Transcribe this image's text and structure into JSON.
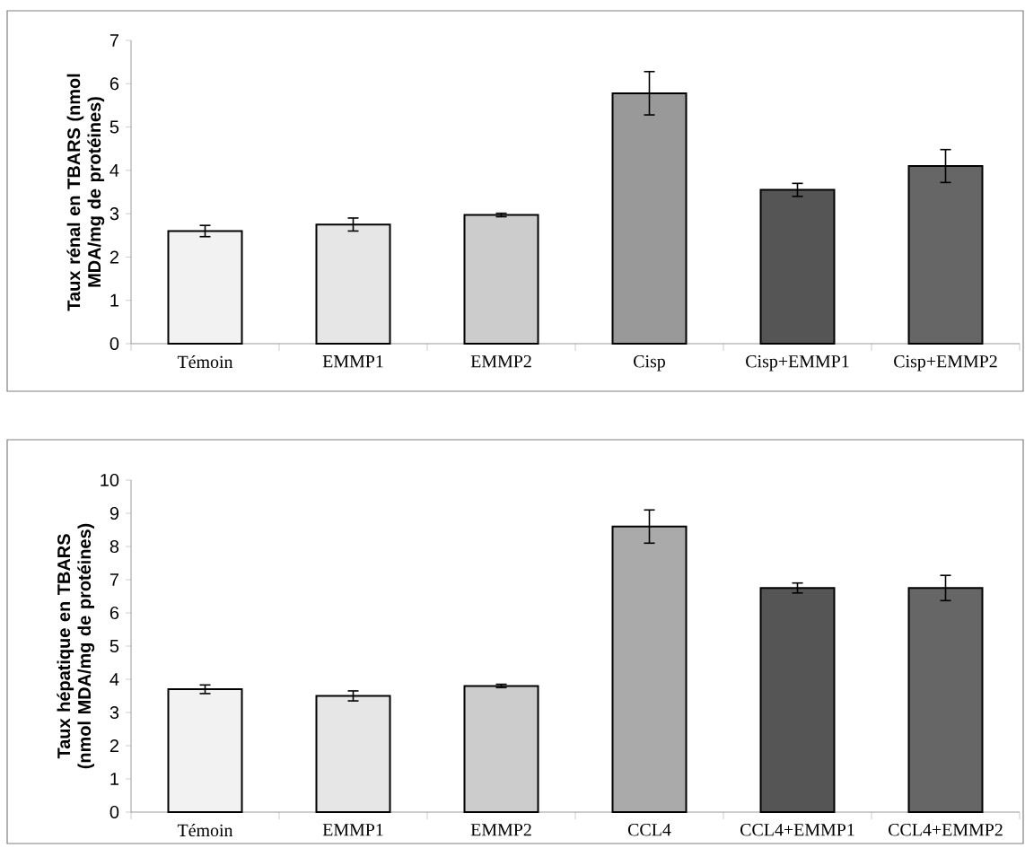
{
  "chart_data": [
    {
      "type": "bar",
      "ylabel": "Taux rénal en TBARS (nmol MDA/mg de protéines)",
      "categories": [
        "Témoin",
        "EMMP1",
        "EMMP2",
        "Cisp",
        "Cisp+EMMP1",
        "Cisp+EMMP2"
      ],
      "values": [
        2.6,
        2.75,
        2.97,
        5.78,
        3.55,
        4.1
      ],
      "errors": [
        0.13,
        0.15,
        0.04,
        0.5,
        0.15,
        0.38
      ],
      "colors": [
        "#f2f2f2",
        "#e6e6e6",
        "#cccccc",
        "#999999",
        "#555555",
        "#666666"
      ],
      "ylim": [
        0,
        7
      ],
      "yticks": [
        0,
        1,
        2,
        3,
        4,
        5,
        6,
        7
      ],
      "grid": false
    },
    {
      "type": "bar",
      "ylabel": "Taux hépatique en TBARS (nmol MDA/mg de protéines)",
      "categories": [
        "Témoin",
        "EMMP1",
        "EMMP2",
        "CCL4",
        "CCL4+EMMP1",
        "CCL4+EMMP2"
      ],
      "values": [
        3.7,
        3.5,
        3.8,
        8.6,
        6.75,
        6.75
      ],
      "errors": [
        0.13,
        0.15,
        0.05,
        0.5,
        0.15,
        0.38
      ],
      "colors": [
        "#f2f2f2",
        "#e6e6e6",
        "#cccccc",
        "#aaaaaa",
        "#555555",
        "#666666"
      ],
      "ylim": [
        0,
        10
      ],
      "yticks": [
        0,
        1,
        2,
        3,
        4,
        5,
        6,
        7,
        8,
        9,
        10
      ],
      "grid": false
    }
  ]
}
